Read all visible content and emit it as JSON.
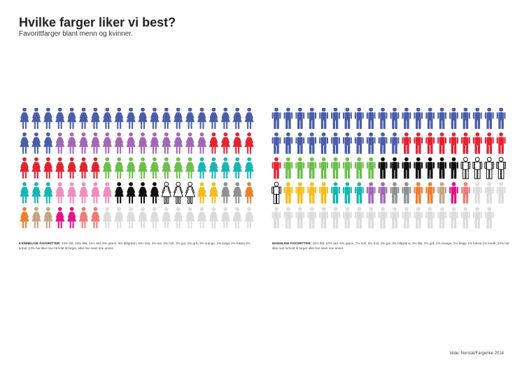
{
  "header": {
    "title": "Hvilke farger liker vi best?",
    "subtitle": "Favorittfarger blant menn og kvinner."
  },
  "chart_data": [
    {
      "type": "pictogram",
      "group": "women",
      "icon": "female-figure-icon",
      "total_icons": 100,
      "categories": [
        "blå",
        "lilla",
        "rød",
        "grønn",
        "blågrønn",
        "rosa",
        "sor",
        "hvit",
        "gul",
        "grå",
        "orange",
        "beige",
        "fuksia",
        "korall",
        "har ikke noe forhold til farger, eller har svart noe annet"
      ],
      "values": [
        23,
        13,
        11,
        8,
        8,
        5,
        4,
        3,
        2,
        2,
        2,
        2,
        2,
        2,
        13
      ],
      "colors": [
        "#4a5ea8",
        "#a267b5",
        "#e52231",
        "#6cbf4a",
        "#16b6b3",
        "#f08cc0",
        "#111111",
        "#ffffff",
        "#f7bb1e",
        "#8f9092",
        "#ef7d2e",
        "#c4a585",
        "#e3128b",
        "#ef7b78",
        "#dcdcdc"
      ]
    },
    {
      "type": "pictogram",
      "group": "men",
      "icon": "male-figure-icon",
      "total_icons": 100,
      "categories": [
        "blå",
        "rød",
        "grønn",
        "sort",
        "hvit",
        "gul",
        "blågrønn",
        "lilla",
        "grå",
        "orange",
        "beige",
        "fuksia",
        "korall",
        "har ikke noe forhold til farger eller har svart noe annet"
      ],
      "values": [
        31,
        10,
        8,
        7,
        5,
        4,
        3,
        2,
        2,
        2,
        1,
        1,
        1,
        22
      ],
      "colors": [
        "#4a5ea8",
        "#e52231",
        "#6cbf4a",
        "#111111",
        "#ffffff",
        "#f7bb1e",
        "#16b6b3",
        "#a267b5",
        "#8f9092",
        "#ef7d2e",
        "#c4a585",
        "#e3128b",
        "#ef7b78",
        "#dcdcdc"
      ]
    }
  ],
  "legend": {
    "women_label": "KVINNELIGE FAVORITTER:",
    "women_text": "23% blå, 13% lilla, 11% rød, 8% grønn, 8% blågrønn, 5% rosa, 4% sor, 3% hvit, 2% gul, 2% grå, 2% orange, 2% beige  2% fuksia  2% korall, 13% har ikke noe forhold til farger, eller har svart noe annet.",
    "men_label": "MANNLIGE FAVORITTER:",
    "men_text": "31% blå, 10% rød, 8% grønn, 7% sort, 5% hvit, 4% gul, 3% blågrønn, 2% lilla, 2% grå, 2% orange, 1% beige  1% fuksia  1% korall, 22% har ikke noe forhold til farger eller har svart noe annet."
  },
  "source": "kilde: Norstat/Fargerike 2014"
}
